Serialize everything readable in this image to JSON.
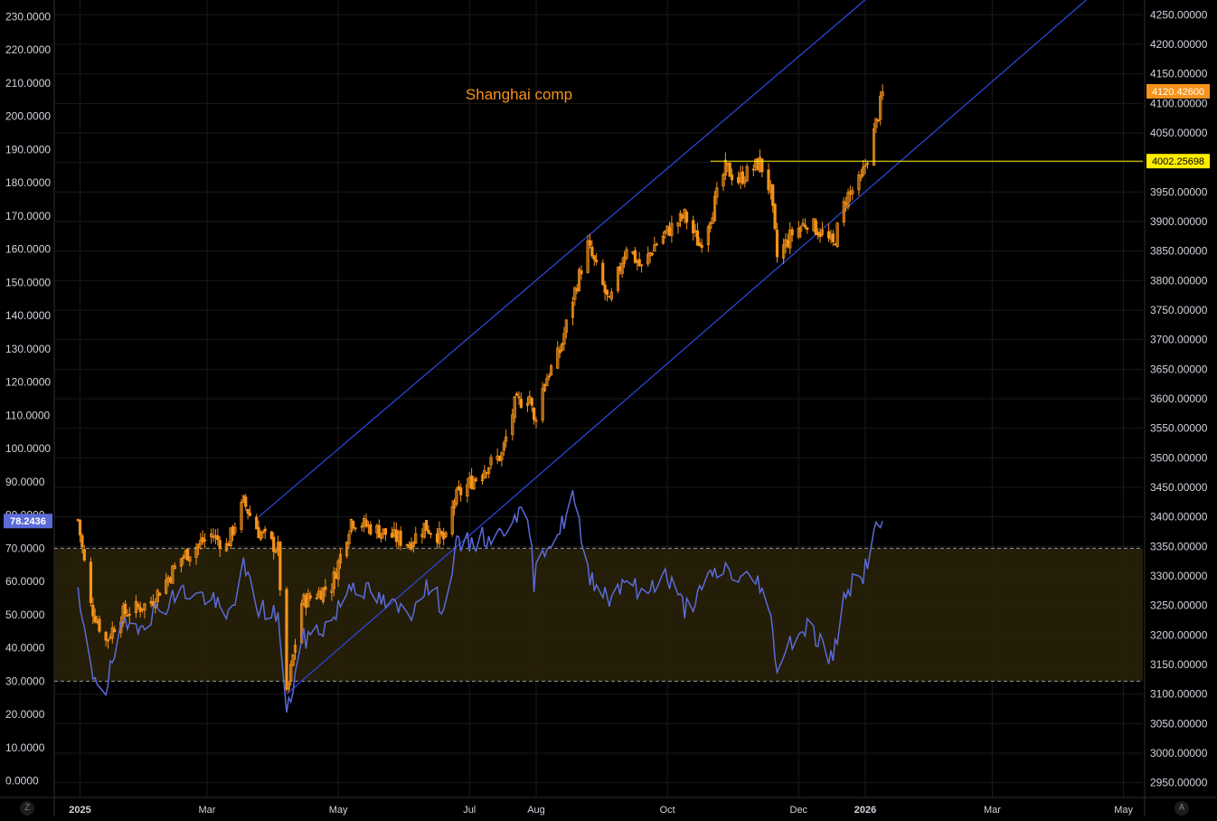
{
  "colors": {
    "background": "#000000",
    "grid": "#1a1a1a",
    "axis_text": "#d1d4dc",
    "candle": "#f7931a",
    "rsi_line": "#5b6bd8",
    "channel": "#2b4ae0",
    "band_fill": "#2a2208",
    "band_dash": "#9598a1",
    "hline": "#ffee00",
    "price_tag": "#f7931a",
    "level_tag": "#ffee00",
    "rsi_tag": "#5b6bd8"
  },
  "corner_buttons": {
    "left": "Z",
    "right": "A"
  },
  "chart_data": {
    "type": "candlestick",
    "title": "Shanghai comp",
    "x_axis": {
      "ticks": [
        {
          "label": "2025",
          "date": "2025-01-01",
          "bold": true
        },
        {
          "label": "Mar",
          "date": "2025-03-01",
          "bold": false
        },
        {
          "label": "May",
          "date": "2025-05-01",
          "bold": false
        },
        {
          "label": "Jul",
          "date": "2025-07-01",
          "bold": false
        },
        {
          "label": "Aug",
          "date": "2025-08-01",
          "bold": false
        },
        {
          "label": "Oct",
          "date": "2025-10-01",
          "bold": false
        },
        {
          "label": "Dec",
          "date": "2025-12-01",
          "bold": false
        },
        {
          "label": "2026",
          "date": "2026-01-01",
          "bold": true
        },
        {
          "label": "Mar",
          "date": "2026-03-01",
          "bold": false
        },
        {
          "label": "May",
          "date": "2026-05-01",
          "bold": false
        }
      ]
    },
    "price_axis": {
      "side": "right",
      "range": [
        2925,
        4275
      ],
      "ticks": [
        "2950.00000",
        "3000.00000",
        "3050.00000",
        "3100.00000",
        "3150.00000",
        "3200.00000",
        "3250.00000",
        "3300.00000",
        "3350.00000",
        "3400.00000",
        "3450.00000",
        "3500.00000",
        "3550.00000",
        "3600.00000",
        "3650.00000",
        "3700.00000",
        "3750.00000",
        "3800.00000",
        "3850.00000",
        "3900.00000",
        "3950.00000",
        "4000.00000",
        "4050.00000",
        "4100.00000",
        "4150.00000",
        "4200.00000",
        "4250.00000"
      ],
      "last_price_label": "4120.42600",
      "level_label": "4002.25698"
    },
    "rsi_axis": {
      "side": "left",
      "range": [
        -5,
        235
      ],
      "ticks": [
        "0.0000",
        "10.0000",
        "20.0000",
        "30.0000",
        "40.0000",
        "50.0000",
        "60.0000",
        "70.0000",
        "80.0000",
        "90.0000",
        "100.0000",
        "110.0000",
        "120.0000",
        "130.0000",
        "140.0000",
        "150.0000",
        "160.0000",
        "170.0000",
        "180.0000",
        "190.0000",
        "200.0000",
        "210.0000",
        "220.0000",
        "230.0000"
      ],
      "current_label": "78.2436",
      "band": [
        30,
        70
      ]
    },
    "horizontal_level": {
      "value": 4002.26,
      "from": "2025-10-21"
    },
    "channel_lines": [
      {
        "from": {
          "date": "2025-04-07",
          "price": 3100
        },
        "to": {
          "date": "2026-01-04",
          "price": 3960
        }
      },
      {
        "from": {
          "date": "2025-03-25",
          "price": 3400
        },
        "to": {
          "date": "2025-12-27",
          "price": 4260
        }
      }
    ],
    "price_anchors": [
      {
        "date": "2024-12-31",
        "price": 3395
      },
      {
        "date": "2025-01-06",
        "price": 3250
      },
      {
        "date": "2025-01-13",
        "price": 3190
      },
      {
        "date": "2025-01-20",
        "price": 3235
      },
      {
        "date": "2025-02-03",
        "price": 3255
      },
      {
        "date": "2025-02-17",
        "price": 3330
      },
      {
        "date": "2025-03-03",
        "price": 3370
      },
      {
        "date": "2025-03-10",
        "price": 3350
      },
      {
        "date": "2025-03-18",
        "price": 3425
      },
      {
        "date": "2025-03-25",
        "price": 3375
      },
      {
        "date": "2025-04-03",
        "price": 3345
      },
      {
        "date": "2025-04-07",
        "price": 3095
      },
      {
        "date": "2025-04-14",
        "price": 3255
      },
      {
        "date": "2025-04-28",
        "price": 3285
      },
      {
        "date": "2025-05-07",
        "price": 3395
      },
      {
        "date": "2025-05-14",
        "price": 3385
      },
      {
        "date": "2025-05-21",
        "price": 3375
      },
      {
        "date": "2025-06-03",
        "price": 3355
      },
      {
        "date": "2025-06-10",
        "price": 3385
      },
      {
        "date": "2025-06-20",
        "price": 3360
      },
      {
        "date": "2025-06-24",
        "price": 3430
      },
      {
        "date": "2025-07-07",
        "price": 3480
      },
      {
        "date": "2025-07-16",
        "price": 3505
      },
      {
        "date": "2025-07-22",
        "price": 3590
      },
      {
        "date": "2025-07-29",
        "price": 3605
      },
      {
        "date": "2025-07-31",
        "price": 3560
      },
      {
        "date": "2025-08-05",
        "price": 3630
      },
      {
        "date": "2025-08-12",
        "price": 3680
      },
      {
        "date": "2025-08-18",
        "price": 3770
      },
      {
        "date": "2025-08-25",
        "price": 3860
      },
      {
        "date": "2025-09-04",
        "price": 3760
      },
      {
        "date": "2025-09-12",
        "price": 3860
      },
      {
        "date": "2025-09-19",
        "price": 3820
      },
      {
        "date": "2025-09-25",
        "price": 3860
      },
      {
        "date": "2025-09-30",
        "price": 3880
      },
      {
        "date": "2025-10-09",
        "price": 3910
      },
      {
        "date": "2025-10-16",
        "price": 3860
      },
      {
        "date": "2025-10-22",
        "price": 3920
      },
      {
        "date": "2025-10-28",
        "price": 3990
      },
      {
        "date": "2025-11-03",
        "price": 3970
      },
      {
        "date": "2025-11-13",
        "price": 4000
      },
      {
        "date": "2025-11-18",
        "price": 3950
      },
      {
        "date": "2025-11-21",
        "price": 3840
      },
      {
        "date": "2025-11-28",
        "price": 3880
      },
      {
        "date": "2025-12-05",
        "price": 3900
      },
      {
        "date": "2025-12-12",
        "price": 3880
      },
      {
        "date": "2025-12-17",
        "price": 3860
      },
      {
        "date": "2025-12-23",
        "price": 3940
      },
      {
        "date": "2025-12-30",
        "price": 3970
      },
      {
        "date": "2026-01-05",
        "price": 4050
      },
      {
        "date": "2026-01-09",
        "price": 4115
      }
    ],
    "rsi_series": [
      {
        "date": "2024-12-31",
        "value": 55
      },
      {
        "date": "2025-01-06",
        "value": 33
      },
      {
        "date": "2025-01-13",
        "value": 28
      },
      {
        "date": "2025-01-20",
        "value": 45
      },
      {
        "date": "2025-02-03",
        "value": 50
      },
      {
        "date": "2025-02-17",
        "value": 57
      },
      {
        "date": "2025-03-03",
        "value": 55
      },
      {
        "date": "2025-03-10",
        "value": 48
      },
      {
        "date": "2025-03-18",
        "value": 64
      },
      {
        "date": "2025-03-25",
        "value": 52
      },
      {
        "date": "2025-04-03",
        "value": 50
      },
      {
        "date": "2025-04-07",
        "value": 19
      },
      {
        "date": "2025-04-14",
        "value": 42
      },
      {
        "date": "2025-04-28",
        "value": 48
      },
      {
        "date": "2025-05-07",
        "value": 60
      },
      {
        "date": "2025-05-14",
        "value": 57
      },
      {
        "date": "2025-05-21",
        "value": 54
      },
      {
        "date": "2025-06-03",
        "value": 50
      },
      {
        "date": "2025-06-10",
        "value": 59
      },
      {
        "date": "2025-06-20",
        "value": 52
      },
      {
        "date": "2025-06-24",
        "value": 70
      },
      {
        "date": "2025-07-07",
        "value": 73
      },
      {
        "date": "2025-07-16",
        "value": 74
      },
      {
        "date": "2025-07-22",
        "value": 82
      },
      {
        "date": "2025-07-29",
        "value": 75
      },
      {
        "date": "2025-07-31",
        "value": 60
      },
      {
        "date": "2025-08-05",
        "value": 71
      },
      {
        "date": "2025-08-12",
        "value": 75
      },
      {
        "date": "2025-08-18",
        "value": 86
      },
      {
        "date": "2025-08-25",
        "value": 63
      },
      {
        "date": "2025-09-04",
        "value": 55
      },
      {
        "date": "2025-09-12",
        "value": 62
      },
      {
        "date": "2025-09-19",
        "value": 55
      },
      {
        "date": "2025-09-25",
        "value": 60
      },
      {
        "date": "2025-09-30",
        "value": 62
      },
      {
        "date": "2025-10-09",
        "value": 52
      },
      {
        "date": "2025-10-16",
        "value": 56
      },
      {
        "date": "2025-10-22",
        "value": 62
      },
      {
        "date": "2025-10-28",
        "value": 64
      },
      {
        "date": "2025-11-03",
        "value": 61
      },
      {
        "date": "2025-11-13",
        "value": 60
      },
      {
        "date": "2025-11-18",
        "value": 48
      },
      {
        "date": "2025-11-21",
        "value": 35
      },
      {
        "date": "2025-11-28",
        "value": 43
      },
      {
        "date": "2025-12-05",
        "value": 47
      },
      {
        "date": "2025-12-12",
        "value": 41
      },
      {
        "date": "2025-12-17",
        "value": 36
      },
      {
        "date": "2025-12-23",
        "value": 58
      },
      {
        "date": "2025-12-30",
        "value": 60
      },
      {
        "date": "2026-01-05",
        "value": 74
      },
      {
        "date": "2026-01-09",
        "value": 78.2
      }
    ]
  }
}
